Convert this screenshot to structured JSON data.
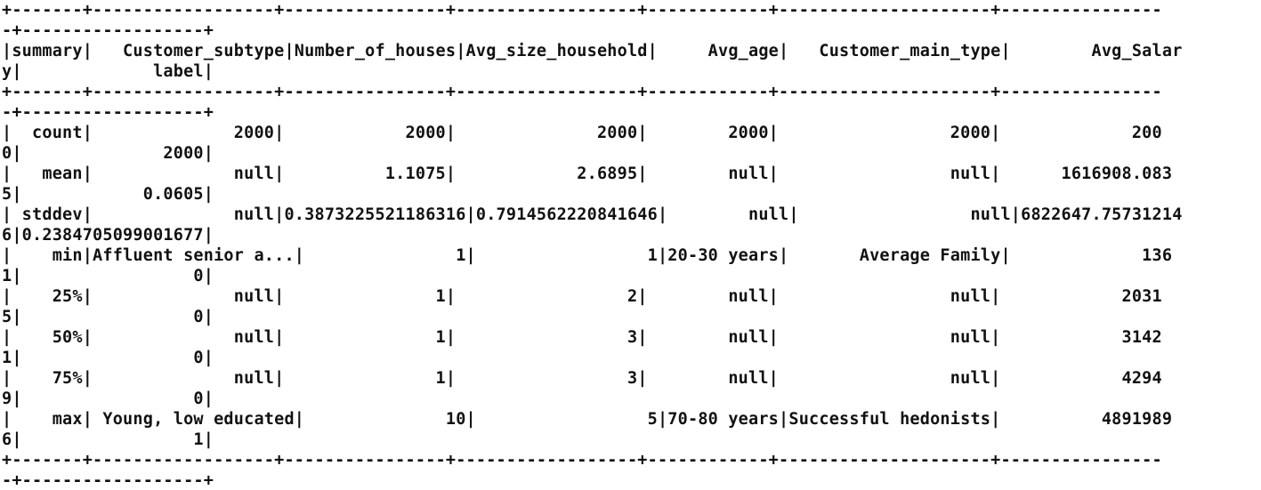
{
  "lines": [
    "+-------+------------------+----------------+------------------+------------+---------------------+----------------",
    "-+------------------+",
    "|summary|   Customer_subtype|Number_of_houses|Avg_size_household|     Avg_age|   Customer_main_type|        Avg_Salar",
    "y|             label|",
    "+-------+------------------+----------------+------------------+------------+---------------------+----------------",
    "-+------------------+",
    "|  count|              2000|            2000|              2000|        2000|                 2000|             200",
    "0|              2000|",
    "|   mean|              null|          1.1075|            2.6895|        null|                 null|      1616908.083",
    "5|            0.0605|",
    "| stddev|              null|0.3873225521186316|0.7914562220841646|        null|                 null|6822647.75731214",
    "6|0.2384705099001677|",
    "|    min|Affluent senior a...|               1|                 1|20-30 years|       Average Family|             136",
    "1|                 0|",
    "|    25%|              null|               1|                 2|        null|                 null|            2031",
    "5|                 0|",
    "|    50%|              null|               1|                 3|        null|                 null|            3142",
    "1|                 0|",
    "|    75%|              null|               1|                 3|        null|                 null|            4294",
    "9|                 0|",
    "|    max| Young, low educated|              10|                 5|70-80 years|Successful hedonists|          4891989",
    "6|                 1|",
    "+-------+------------------+----------------+------------------+------------+---------------------+----------------",
    "-+------------------+"
  ]
}
